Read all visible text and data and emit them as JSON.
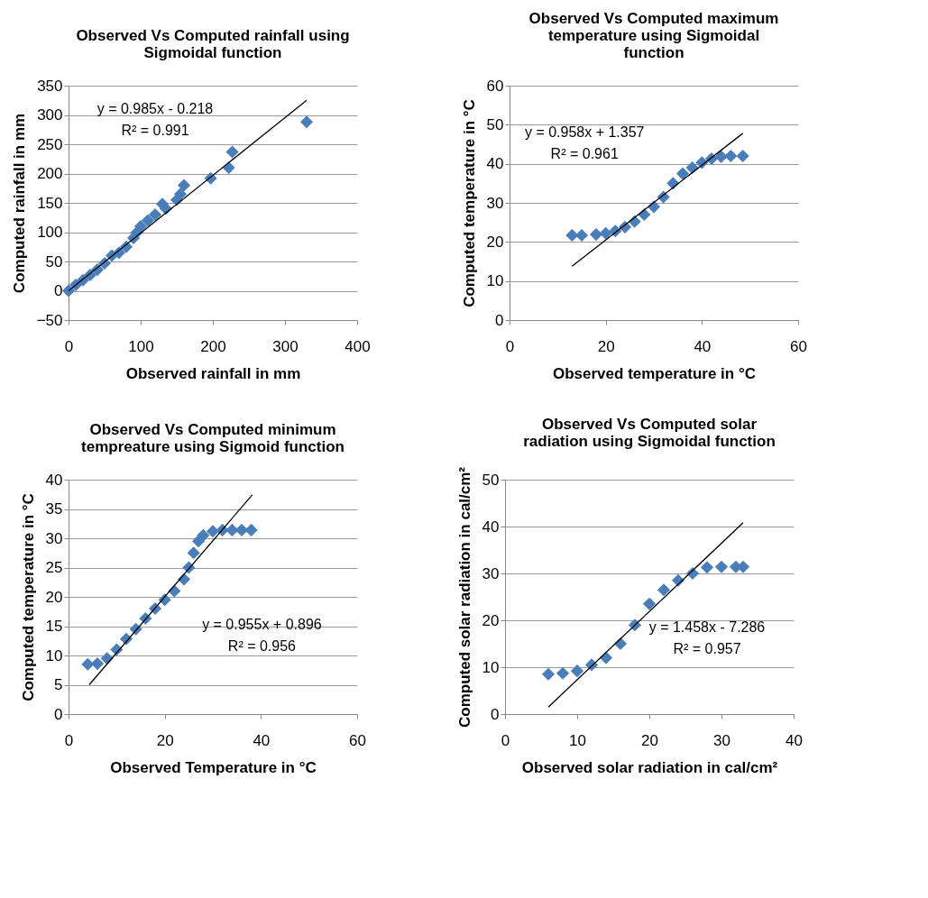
{
  "chart_data": [
    {
      "type": "scatter",
      "title": "Observed Vs Computed rainfall using Sigmoidal function",
      "xlabel": "Observed rainfall in mm",
      "ylabel": "Computed rainfall in mm",
      "xlim": [
        0,
        400
      ],
      "xticks": [
        0,
        100,
        200,
        300,
        400
      ],
      "ylim": [
        -50,
        350
      ],
      "yticks": [
        -50,
        0,
        50,
        100,
        150,
        200,
        250,
        300,
        350
      ],
      "grid": "y",
      "marker": "diamond",
      "series": [
        {
          "color": "#4a7ebb",
          "x": [
            0,
            10,
            20,
            30,
            40,
            50,
            60,
            70,
            80,
            90,
            95,
            100,
            110,
            120,
            130,
            135,
            150,
            155,
            160,
            197,
            222,
            227,
            330
          ],
          "values": [
            0,
            10,
            18,
            27,
            36,
            47,
            60,
            65,
            75,
            90,
            100,
            110,
            120,
            130,
            148,
            140,
            155,
            165,
            180,
            192,
            210,
            237,
            288
          ]
        },
        {
          "type": "line",
          "color": "#000000",
          "marker": "none",
          "x": [
            0,
            330
          ],
          "values": [
            0,
            325
          ]
        }
      ],
      "annotations": [
        "y = 0.985x - 0.218",
        "R² = 0.991"
      ]
    },
    {
      "type": "scatter",
      "title": "Observed Vs Computed maximum temperature using  Sigmoidal function",
      "xlabel": "Observed temperature in °C",
      "ylabel": "Computed temperature in °C",
      "xlim": [
        0,
        60
      ],
      "xticks": [
        0,
        20,
        40,
        60
      ],
      "ylim": [
        0,
        60
      ],
      "yticks": [
        0,
        10,
        20,
        30,
        40,
        50,
        60
      ],
      "grid": "y",
      "marker": "diamond",
      "series": [
        {
          "color": "#4a7ebb",
          "x": [
            13,
            15,
            18,
            20,
            22,
            24,
            26,
            28,
            30,
            32,
            34,
            36,
            38,
            40,
            42,
            44,
            46,
            48.5
          ],
          "values": [
            21.7,
            21.7,
            21.9,
            22.2,
            22.8,
            23.8,
            25.2,
            27,
            29,
            31.5,
            35,
            37.5,
            39,
            40.3,
            41.3,
            41.8,
            42,
            42
          ]
        },
        {
          "type": "line",
          "color": "#000000",
          "marker": "none",
          "x": [
            13,
            48.5
          ],
          "values": [
            13.8,
            47.8
          ]
        }
      ],
      "annotations": [
        "y = 0.958x + 1.357",
        "R² = 0.961"
      ]
    },
    {
      "type": "scatter",
      "title": "Observed Vs Computed minimum tempreature using  Sigmoid function",
      "xlabel": "Observed Temperature in °C",
      "ylabel": "Computed temperature in °C",
      "xlim": [
        0,
        60
      ],
      "xticks": [
        0,
        20,
        40,
        60
      ],
      "ylim": [
        0,
        40
      ],
      "yticks": [
        0,
        5,
        10,
        15,
        20,
        25,
        30,
        35,
        40
      ],
      "grid": "y",
      "marker": "diamond",
      "series": [
        {
          "color": "#4a7ebb",
          "x": [
            4,
            6,
            8,
            10,
            12,
            14,
            16,
            18,
            20,
            22,
            24,
            25,
            26,
            27,
            28,
            30,
            32,
            34,
            36,
            38
          ],
          "values": [
            8.5,
            8.6,
            9.5,
            11,
            12.8,
            14.5,
            16.3,
            18,
            19.5,
            21,
            23,
            25,
            27.5,
            29.5,
            30.5,
            31.2,
            31.4,
            31.4,
            31.4,
            31.4
          ]
        },
        {
          "type": "line",
          "color": "#000000",
          "marker": "none",
          "x": [
            4.3,
            38.2
          ],
          "values": [
            5,
            37.4
          ]
        }
      ],
      "annotations": [
        "y = 0.955x + 0.896",
        "R² = 0.956"
      ]
    },
    {
      "type": "scatter",
      "title": "Observed Vs Computed solar radiation using Sigmoidal function",
      "xlabel": "Observed solar radiation in cal/cm²",
      "ylabel": "Computed solar radiation in cal/cm²",
      "xlim": [
        0,
        40
      ],
      "xticks": [
        0,
        10,
        20,
        30,
        40
      ],
      "ylim": [
        0,
        50
      ],
      "yticks": [
        0,
        10,
        20,
        30,
        40,
        50
      ],
      "grid": "y",
      "marker": "diamond",
      "series": [
        {
          "color": "#4a7ebb",
          "x": [
            6,
            8,
            10,
            12,
            14,
            16,
            18,
            20,
            22,
            24,
            26,
            28,
            30,
            32,
            33
          ],
          "values": [
            8.5,
            8.7,
            9.2,
            10.5,
            12,
            15,
            19,
            23.5,
            26.5,
            28.5,
            30,
            31.3,
            31.4,
            31.4,
            31.4
          ]
        },
        {
          "type": "line",
          "color": "#000000",
          "marker": "none",
          "x": [
            6,
            33
          ],
          "values": [
            1.5,
            40.8
          ]
        }
      ],
      "annotations": [
        "y = 1.458x - 7.286",
        "R² = 0.957"
      ]
    }
  ]
}
